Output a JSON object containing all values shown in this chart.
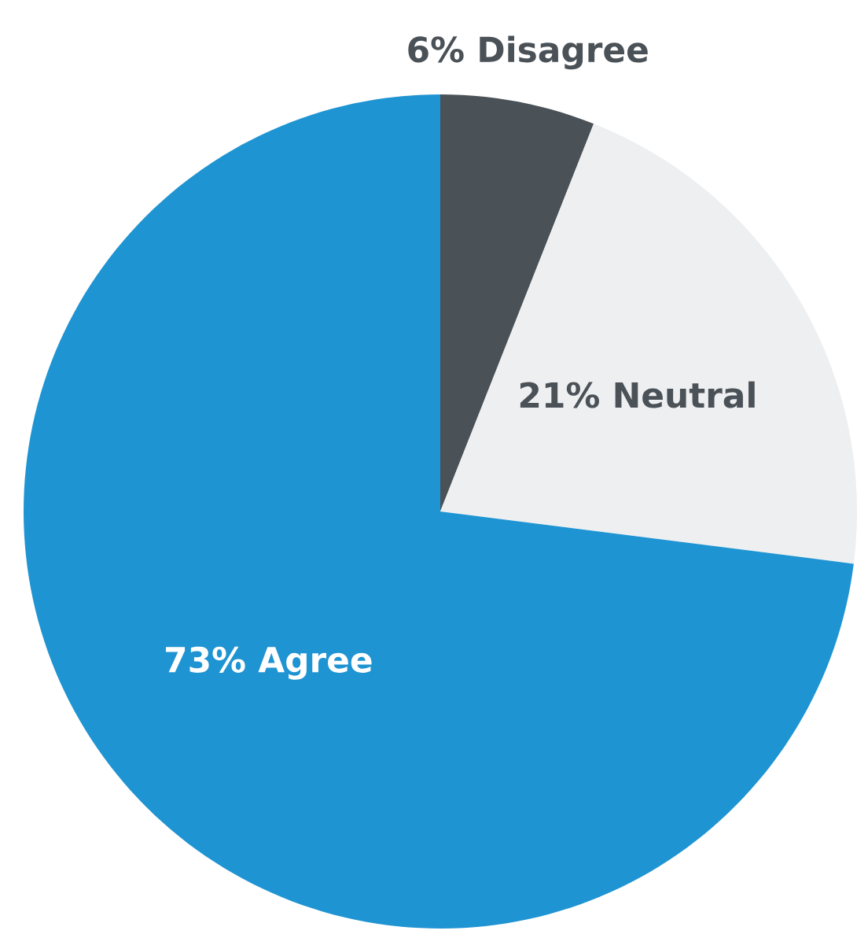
{
  "chart_data": {
    "type": "pie",
    "categories": [
      "Disagree",
      "Neutral",
      "Agree"
    ],
    "values": [
      6,
      21,
      73
    ],
    "value_labels": [
      "6%",
      "21%",
      "73%"
    ],
    "colors": [
      "#4a5157",
      "#eeeff1",
      "#1f94d2"
    ]
  }
}
